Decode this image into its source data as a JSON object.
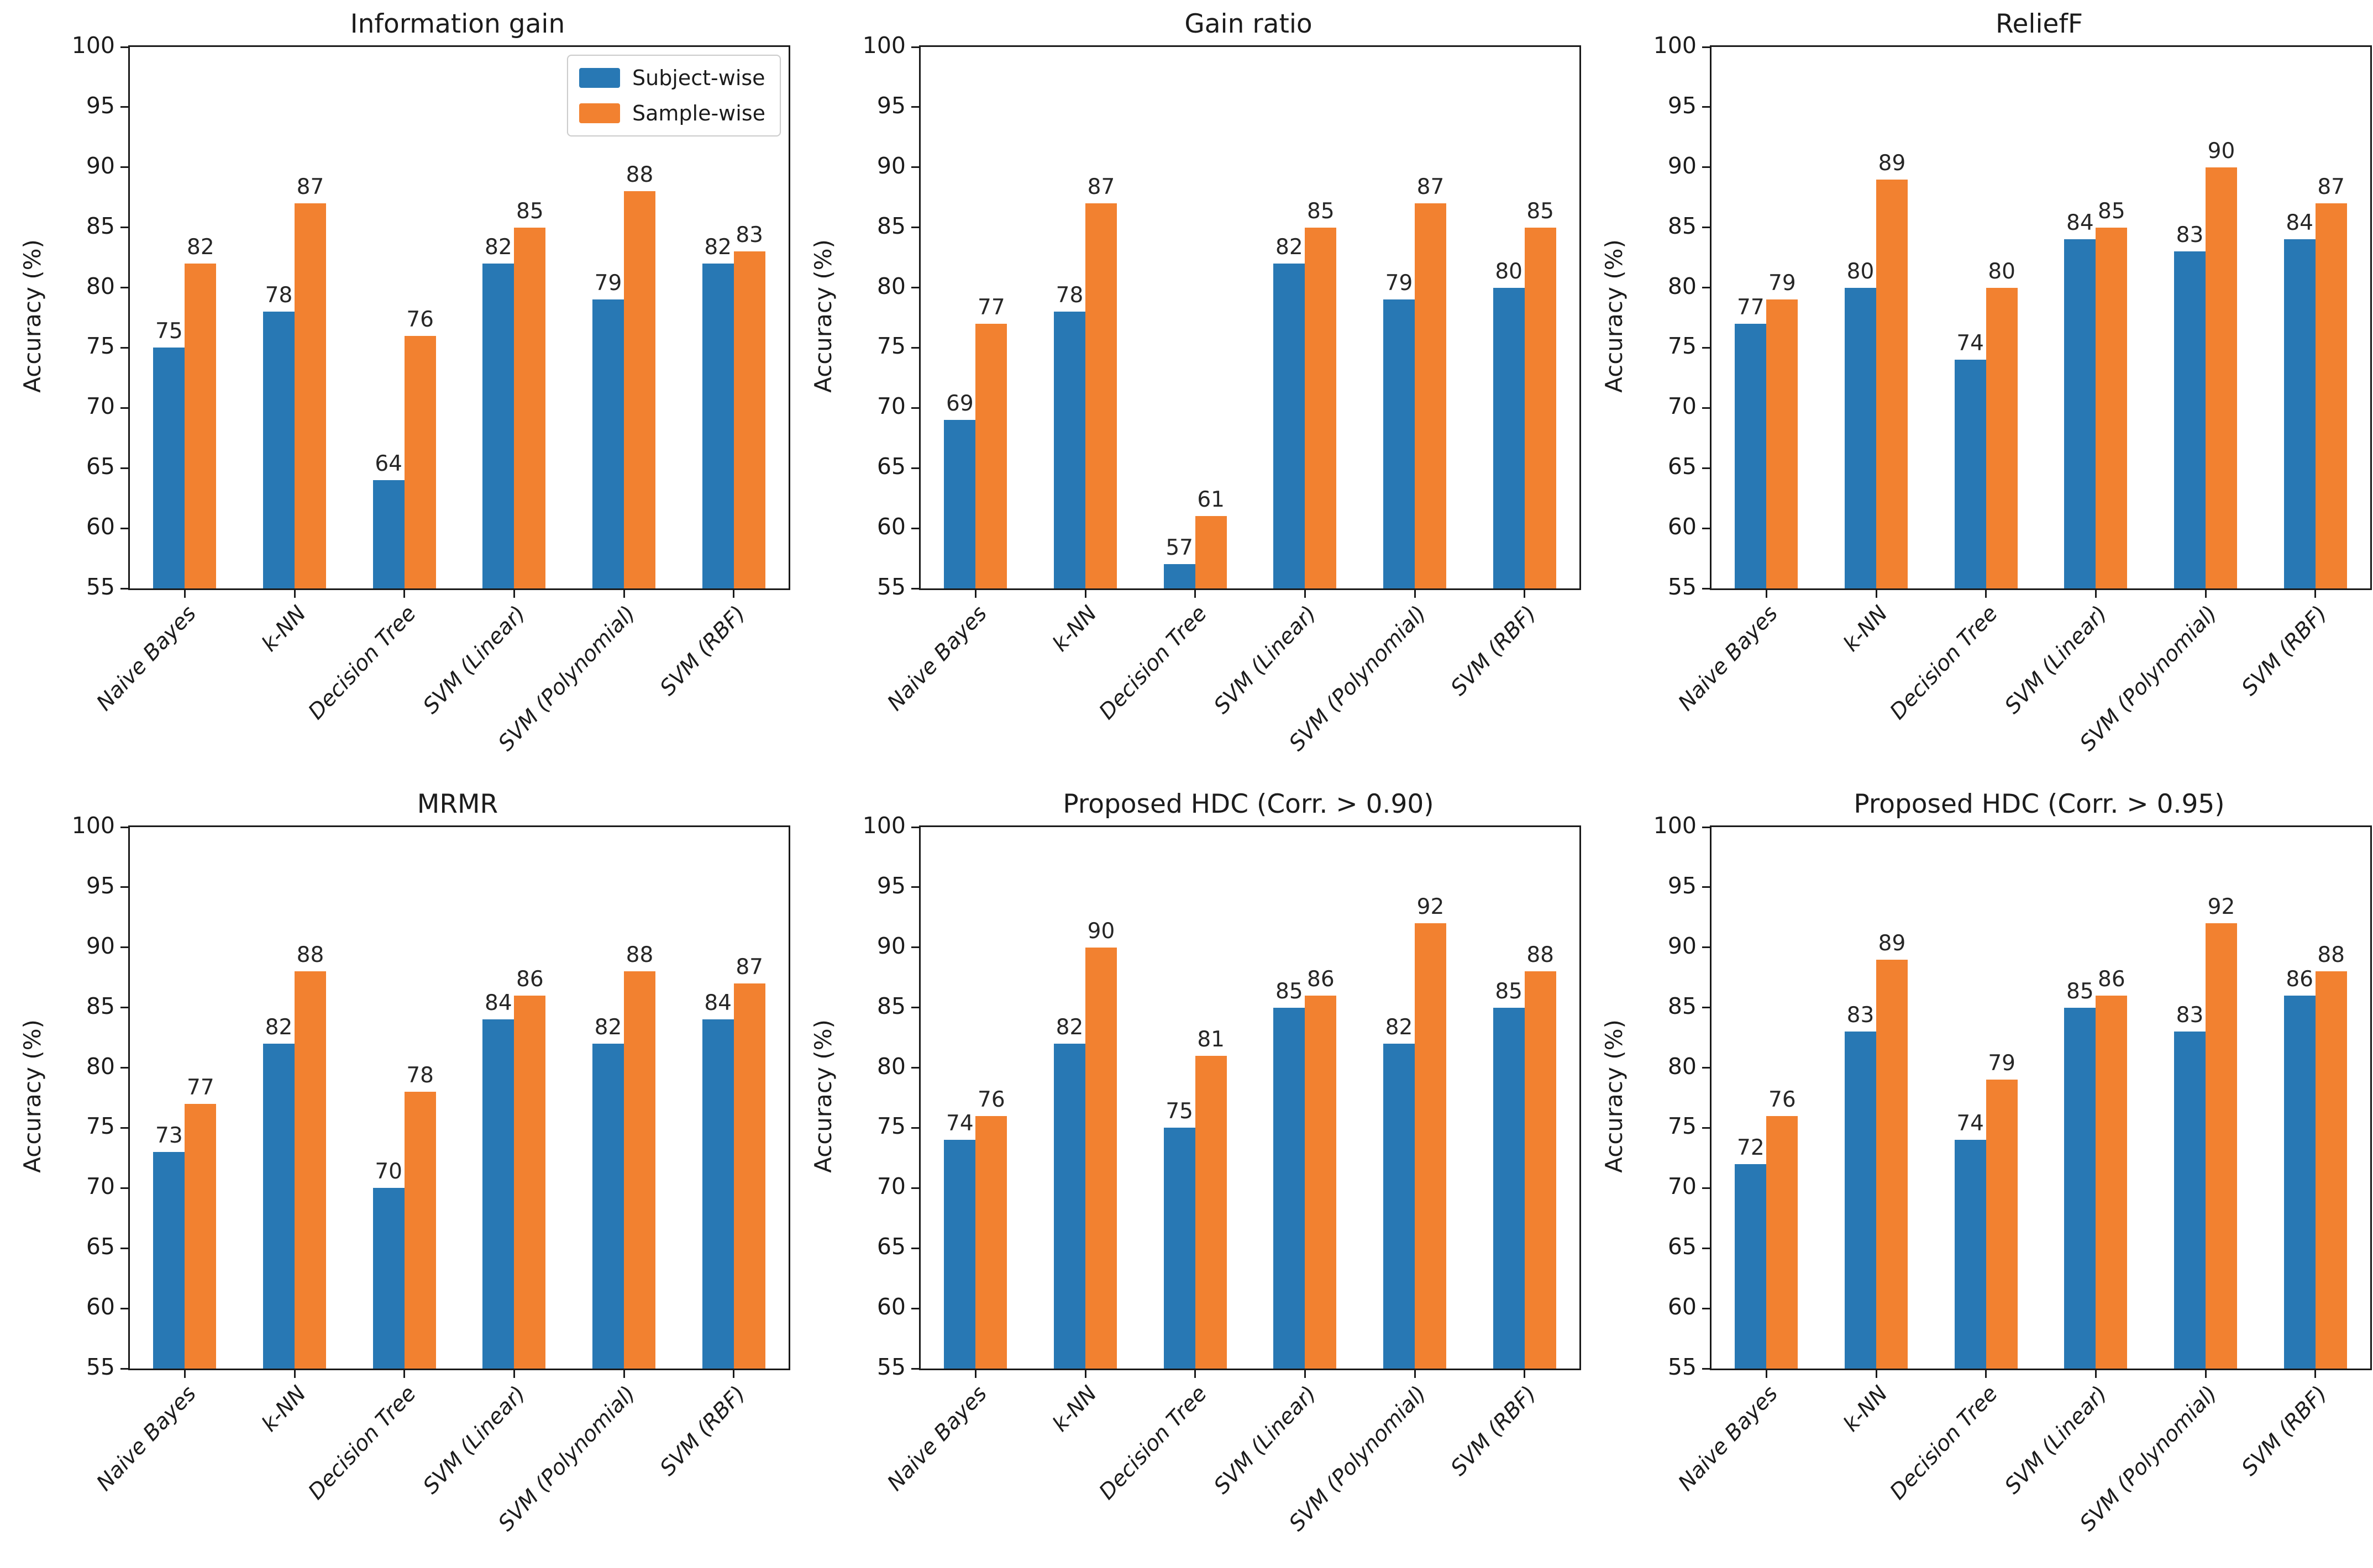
{
  "shared": {
    "ylabel": "Accuracy (%)",
    "categories": [
      "Naive Bayes",
      "k-NN",
      "Decision Tree",
      "SVM (Linear)",
      "SVM (Polynomial)",
      "SVM (RBF)"
    ],
    "yticks": [
      55,
      60,
      65,
      70,
      75,
      80,
      85,
      90,
      95,
      100
    ],
    "ylim": [
      55,
      100
    ],
    "colors": {
      "subject_wise": "#2878b4",
      "sample_wise": "#f28130",
      "axis": "#1a1a1a"
    }
  },
  "legend": {
    "items": [
      {
        "label": "Subject-wise",
        "color": "#2878b4"
      },
      {
        "label": "Sample-wise",
        "color": "#f28130"
      }
    ]
  },
  "chart_data": [
    {
      "type": "bar",
      "title": "Information gain",
      "ylabel": "Accuracy (%)",
      "ylim": [
        55,
        100
      ],
      "grid": false,
      "legend_position": "upper right",
      "categories": [
        "Naive Bayes",
        "k-NN",
        "Decision Tree",
        "SVM (Linear)",
        "SVM (Polynomial)",
        "SVM (RBF)"
      ],
      "series": [
        {
          "name": "Subject-wise",
          "values": [
            75,
            78,
            64,
            82,
            79,
            82
          ]
        },
        {
          "name": "Sample-wise",
          "values": [
            82,
            87,
            76,
            85,
            88,
            83
          ]
        }
      ]
    },
    {
      "type": "bar",
      "title": "Gain ratio",
      "ylabel": "Accuracy (%)",
      "ylim": [
        55,
        100
      ],
      "grid": false,
      "categories": [
        "Naive Bayes",
        "k-NN",
        "Decision Tree",
        "SVM (Linear)",
        "SVM (Polynomial)",
        "SVM (RBF)"
      ],
      "series": [
        {
          "name": "Subject-wise",
          "values": [
            69,
            78,
            57,
            82,
            79,
            80
          ]
        },
        {
          "name": "Sample-wise",
          "values": [
            77,
            87,
            61,
            85,
            87,
            85
          ]
        }
      ]
    },
    {
      "type": "bar",
      "title": "ReliefF",
      "ylabel": "Accuracy (%)",
      "ylim": [
        55,
        100
      ],
      "grid": false,
      "categories": [
        "Naive Bayes",
        "k-NN",
        "Decision Tree",
        "SVM (Linear)",
        "SVM (Polynomial)",
        "SVM (RBF)"
      ],
      "series": [
        {
          "name": "Subject-wise",
          "values": [
            77,
            80,
            74,
            84,
            83,
            84
          ]
        },
        {
          "name": "Sample-wise",
          "values": [
            79,
            89,
            80,
            85,
            90,
            87
          ]
        }
      ]
    },
    {
      "type": "bar",
      "title": "MRMR",
      "ylabel": "Accuracy (%)",
      "ylim": [
        55,
        100
      ],
      "grid": false,
      "categories": [
        "Naive Bayes",
        "k-NN",
        "Decision Tree",
        "SVM (Linear)",
        "SVM (Polynomial)",
        "SVM (RBF)"
      ],
      "series": [
        {
          "name": "Subject-wise",
          "values": [
            73,
            82,
            70,
            84,
            82,
            84
          ]
        },
        {
          "name": "Sample-wise",
          "values": [
            77,
            88,
            78,
            86,
            88,
            87
          ]
        }
      ]
    },
    {
      "type": "bar",
      "title": "Proposed HDC (Corr. > 0.90)",
      "ylabel": "Accuracy (%)",
      "ylim": [
        55,
        100
      ],
      "grid": false,
      "categories": [
        "Naive Bayes",
        "k-NN",
        "Decision Tree",
        "SVM (Linear)",
        "SVM (Polynomial)",
        "SVM (RBF)"
      ],
      "series": [
        {
          "name": "Subject-wise",
          "values": [
            74,
            82,
            75,
            85,
            82,
            85
          ]
        },
        {
          "name": "Sample-wise",
          "values": [
            76,
            90,
            81,
            86,
            92,
            88
          ]
        }
      ]
    },
    {
      "type": "bar",
      "title": "Proposed HDC (Corr. > 0.95)",
      "ylabel": "Accuracy (%)",
      "ylim": [
        55,
        100
      ],
      "grid": false,
      "categories": [
        "Naive Bayes",
        "k-NN",
        "Decision Tree",
        "SVM (Linear)",
        "SVM (Polynomial)",
        "SVM (RBF)"
      ],
      "series": [
        {
          "name": "Subject-wise",
          "values": [
            72,
            83,
            74,
            85,
            83,
            86
          ]
        },
        {
          "name": "Sample-wise",
          "values": [
            76,
            89,
            79,
            86,
            92,
            88
          ]
        }
      ]
    }
  ]
}
